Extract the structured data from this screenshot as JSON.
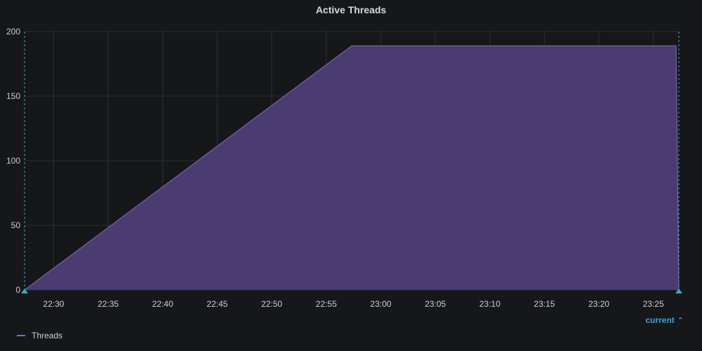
{
  "panel": {
    "title": "Active Threads"
  },
  "legend": {
    "series_label": "Threads",
    "sort_toggle_label": "current",
    "sort_icon": "chevron-up-icon"
  },
  "colors": {
    "background": "#161719",
    "series": "#806eb7",
    "series_fill": "#4a3c70",
    "grid": "#2c2e33",
    "time_marker": "#1fb5c5"
  },
  "chart_data": {
    "type": "area",
    "title": "Active Threads",
    "xlabel": "",
    "ylabel": "",
    "x_domain": [
      "22:27:20",
      "23:27:20"
    ],
    "ylim": [
      0,
      200
    ],
    "y_ticks": [
      0,
      50,
      100,
      150,
      200
    ],
    "x_ticks": [
      "22:30",
      "22:35",
      "22:40",
      "22:45",
      "22:50",
      "22:55",
      "23:00",
      "23:05",
      "23:10",
      "23:15",
      "23:20",
      "23:25"
    ],
    "grid": true,
    "legend_position": "bottom-left",
    "series": [
      {
        "name": "Threads",
        "x": [
          "22:27:20",
          "22:57:20",
          "23:27:05",
          "23:27:20"
        ],
        "values": [
          0,
          189,
          189,
          0
        ]
      }
    ]
  }
}
